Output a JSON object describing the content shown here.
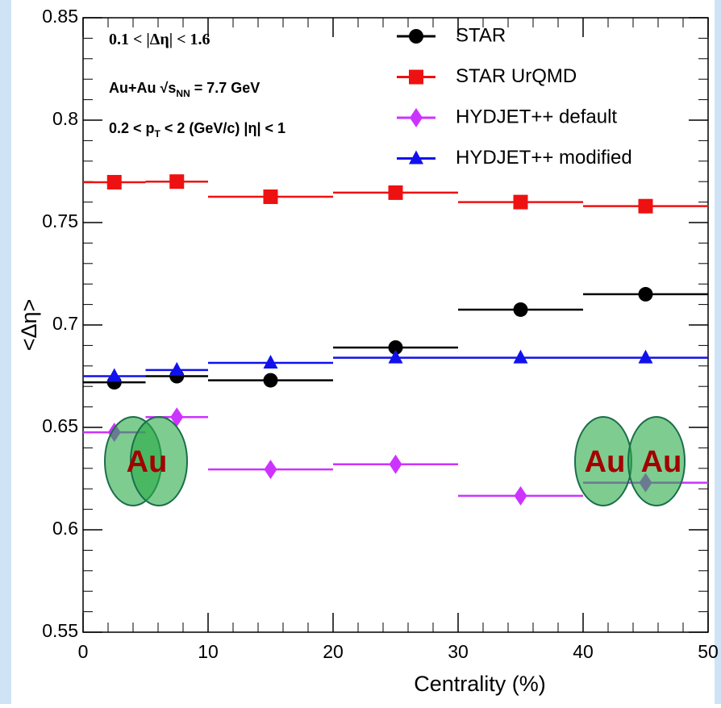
{
  "chart_data": {
    "type": "scatter",
    "ylabel": "<Δη>",
    "xlabel": "Centrality (%)",
    "x": [
      2.5,
      7.5,
      15,
      25,
      35,
      45
    ],
    "xerr": [
      2.5,
      2.5,
      5,
      5,
      5,
      5
    ],
    "series": [
      {
        "name": "STAR",
        "color": "#000000",
        "marker": "circle",
        "values": [
          0.672,
          0.675,
          0.673,
          0.689,
          0.7075,
          0.715
        ]
      },
      {
        "name": "STAR UrQMD",
        "color": "#ee1111",
        "marker": "square",
        "values": [
          0.7697,
          0.77,
          0.7626,
          0.7646,
          0.76,
          0.758
        ]
      },
      {
        "name": "HYDJET++ default",
        "color": "#cc33ff",
        "marker": "diamond",
        "values": [
          0.6476,
          0.655,
          0.6295,
          0.632,
          0.6166,
          0.623
        ]
      },
      {
        "name": "HYDJET++ modified",
        "color": "#1111ee",
        "marker": "triangle",
        "values": [
          0.675,
          0.678,
          0.6815,
          0.684,
          0.684,
          0.684
        ]
      }
    ],
    "xlim": [
      0,
      50
    ],
    "xticks": [
      0,
      10,
      20,
      30,
      40,
      50
    ],
    "xminor": 2,
    "ylim": [
      0.55,
      0.85
    ],
    "yticks": [
      0.55,
      0.6,
      0.65,
      0.7,
      0.75,
      0.8,
      0.85
    ],
    "yminor": 0.01,
    "legend": "top-right",
    "annotations": [
      [
        {
          "text": "0.1 < |Δη| < 1.6"
        }
      ],
      [
        {
          "text": "Au+Au   √"
        },
        {
          "text": "s"
        },
        {
          "text": "NN",
          "sub": true
        },
        {
          "text": " = 7.7 GeV"
        }
      ],
      [
        {
          "text": "0.2 < p"
        },
        {
          "text": "T",
          "sub": true
        },
        {
          "text": " < 2 (GeV/c)  |η| < 1"
        }
      ]
    ],
    "overlays": {
      "left": [
        "Au"
      ],
      "right": [
        "Au",
        "Au"
      ]
    }
  }
}
